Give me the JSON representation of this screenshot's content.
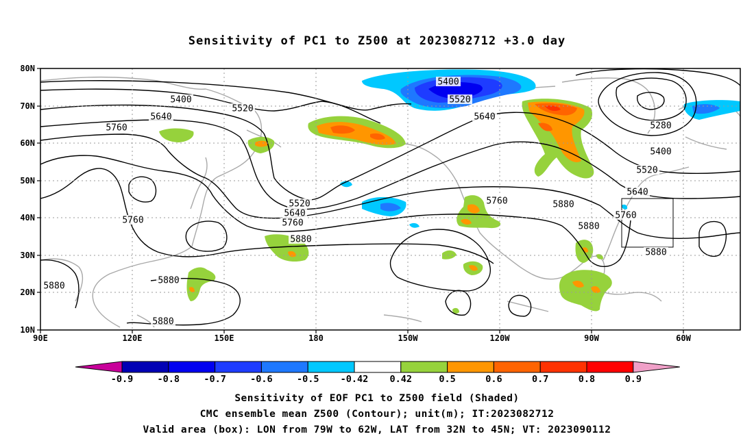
{
  "title": "Sensitivity of PC1 to Z500 at 2023082712 +3.0 day",
  "map": {
    "lat_labels": [
      "80N",
      "70N",
      "60N",
      "50N",
      "40N",
      "30N",
      "20N",
      "10N"
    ],
    "lon_labels": [
      "90E",
      "120E",
      "150E",
      "180",
      "150W",
      "120W",
      "90W",
      "60W"
    ],
    "box": {
      "lon_from": "79W",
      "lon_to": "62W",
      "lat_from": "32N",
      "lat_to": "45N"
    }
  },
  "contour_labels": [
    {
      "text": "5400"
    },
    {
      "text": "5520"
    },
    {
      "text": "5640"
    },
    {
      "text": "5760"
    },
    {
      "text": "5400"
    },
    {
      "text": "5520"
    },
    {
      "text": "5640"
    },
    {
      "text": "5280"
    },
    {
      "text": "5400"
    },
    {
      "text": "5520"
    },
    {
      "text": "5640"
    },
    {
      "text": "5760"
    },
    {
      "text": "5520"
    },
    {
      "text": "5640"
    },
    {
      "text": "5760"
    },
    {
      "text": "5880"
    },
    {
      "text": "5760"
    },
    {
      "text": "5880"
    },
    {
      "text": "5880"
    },
    {
      "text": "5880"
    },
    {
      "text": "5880"
    },
    {
      "text": "5760"
    },
    {
      "text": "5880"
    },
    {
      "text": "5880"
    }
  ],
  "colorbar": {
    "labels": [
      "-0.9",
      "-0.8",
      "-0.7",
      "-0.6",
      "-0.5",
      "-0.42",
      "0.42",
      "0.5",
      "0.6",
      "0.7",
      "0.8",
      "0.9"
    ],
    "colors": [
      "#c8009a",
      "#0000b4",
      "#0000f0",
      "#1e3cff",
      "#1e78ff",
      "#00c8ff",
      "#ffffff",
      "#96d23c",
      "#ff9600",
      "#ff6400",
      "#ff3200",
      "#ff0000",
      "#f0a0c8"
    ]
  },
  "captions": {
    "line1": "Sensitivity of EOF PC1 to Z500 field (Shaded)",
    "line2": "CMC ensemble mean Z500 (Contour); unit(m); IT:2023082712",
    "line3": "Valid area (box): LON from 79W to 62W, LAT from 32N to 45N; VT: 2023090112"
  }
}
